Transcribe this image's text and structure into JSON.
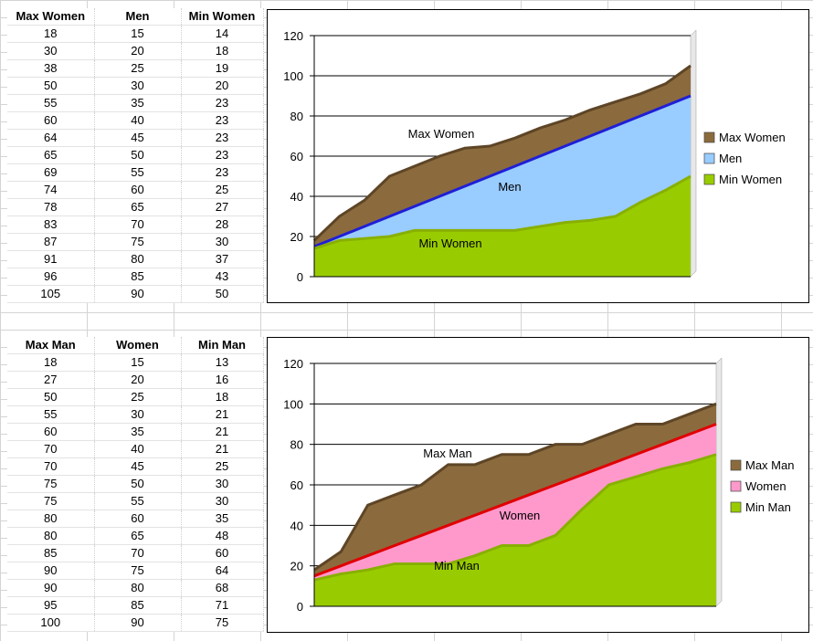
{
  "table1": {
    "headers": [
      "Max Women",
      "Men",
      "Min Women"
    ],
    "rows": [
      [
        18,
        15,
        14
      ],
      [
        30,
        20,
        18
      ],
      [
        38,
        25,
        19
      ],
      [
        50,
        30,
        20
      ],
      [
        55,
        35,
        23
      ],
      [
        60,
        40,
        23
      ],
      [
        64,
        45,
        23
      ],
      [
        65,
        50,
        23
      ],
      [
        69,
        55,
        23
      ],
      [
        74,
        60,
        25
      ],
      [
        78,
        65,
        27
      ],
      [
        83,
        70,
        28
      ],
      [
        87,
        75,
        30
      ],
      [
        91,
        80,
        37
      ],
      [
        96,
        85,
        43
      ],
      [
        105,
        90,
        50
      ]
    ]
  },
  "table2": {
    "headers": [
      "Max Man",
      "Women",
      "Min Man"
    ],
    "rows": [
      [
        18,
        15,
        13
      ],
      [
        27,
        20,
        16
      ],
      [
        50,
        25,
        18
      ],
      [
        55,
        30,
        21
      ],
      [
        60,
        35,
        21
      ],
      [
        70,
        40,
        21
      ],
      [
        70,
        45,
        25
      ],
      [
        75,
        50,
        30
      ],
      [
        75,
        55,
        30
      ],
      [
        80,
        60,
        35
      ],
      [
        80,
        65,
        48
      ],
      [
        85,
        70,
        60
      ],
      [
        90,
        75,
        64
      ],
      [
        90,
        80,
        68
      ],
      [
        95,
        85,
        71
      ],
      [
        100,
        90,
        75
      ]
    ]
  },
  "chart_data": [
    {
      "type": "area",
      "ylim": [
        0,
        120
      ],
      "yticks": [
        0,
        20,
        40,
        60,
        80,
        100,
        120
      ],
      "series": [
        {
          "name": "Max Women",
          "color": "#8b6b3d",
          "line": "#5e4526",
          "values": [
            18,
            30,
            38,
            50,
            55,
            60,
            64,
            65,
            69,
            74,
            78,
            83,
            87,
            91,
            96,
            105
          ]
        },
        {
          "name": "Men",
          "color": "#99ccff",
          "line": "#1f1fd6",
          "values": [
            15,
            20,
            25,
            30,
            35,
            40,
            45,
            50,
            55,
            60,
            65,
            70,
            75,
            80,
            85,
            90
          ]
        },
        {
          "name": "Min Women",
          "color": "#99cc00",
          "line": "#88b000",
          "values": [
            14,
            18,
            19,
            20,
            23,
            23,
            23,
            23,
            23,
            25,
            27,
            28,
            30,
            37,
            43,
            50
          ]
        }
      ],
      "annotations": [
        "Max Women",
        "Men",
        "Min Women"
      ],
      "legend": "right",
      "grid": true
    },
    {
      "type": "area",
      "ylim": [
        0,
        120
      ],
      "yticks": [
        0,
        20,
        40,
        60,
        80,
        100,
        120
      ],
      "series": [
        {
          "name": "Max Man",
          "color": "#8b6b3d",
          "line": "#5e4526",
          "values": [
            18,
            27,
            50,
            55,
            60,
            70,
            70,
            75,
            75,
            80,
            80,
            85,
            90,
            90,
            95,
            100
          ]
        },
        {
          "name": "Women",
          "color": "#ff99cc",
          "line": "#e00000",
          "values": [
            15,
            20,
            25,
            30,
            35,
            40,
            45,
            50,
            55,
            60,
            65,
            70,
            75,
            80,
            85,
            90
          ]
        },
        {
          "name": "Min Man",
          "color": "#99cc00",
          "line": "#88b000",
          "values": [
            13,
            16,
            18,
            21,
            21,
            21,
            25,
            30,
            30,
            35,
            48,
            60,
            64,
            68,
            71,
            75
          ]
        }
      ],
      "annotations": [
        "Max Man",
        "Women",
        "Min Man"
      ],
      "legend": "right",
      "grid": true
    }
  ]
}
